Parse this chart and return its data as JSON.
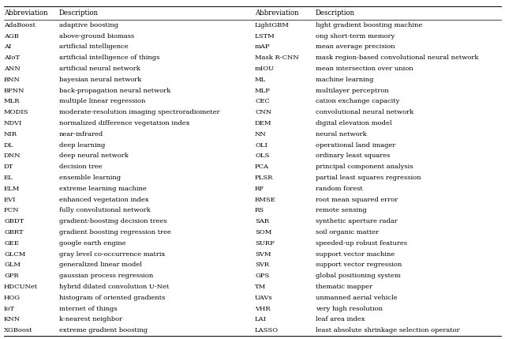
{
  "left_data": [
    [
      "AdaBoost",
      "adaptive boosting"
    ],
    [
      "AGB",
      "above-ground biomass"
    ],
    [
      "AI",
      "artificial intelligence"
    ],
    [
      "AIoT",
      "artificial intelligence of things"
    ],
    [
      "ANN",
      "artificial neural network"
    ],
    [
      "BNN",
      "bayesian neural network"
    ],
    [
      "BPNN",
      "back-propagation neural network"
    ],
    [
      "MLR",
      "multiple linear regression"
    ],
    [
      "MODIS",
      "moderate-resolution imaging spectroradiometer"
    ],
    [
      "NDVI",
      "normalized difference vegetation index"
    ],
    [
      "NIR",
      "near-infrared"
    ],
    [
      "DL",
      "deep learning"
    ],
    [
      "DNN",
      "deep neural network"
    ],
    [
      "DT",
      "decision tree"
    ],
    [
      "EL",
      "ensemble learning"
    ],
    [
      "ELM",
      "extreme learning machine"
    ],
    [
      "EVI",
      "enhanced vegetation index"
    ],
    [
      "FCN",
      "fully convolutional network"
    ],
    [
      "GBDT",
      "gradient-boosting decision trees"
    ],
    [
      "GBRT",
      "gradient boosting regression tree"
    ],
    [
      "GEE",
      "google earth engine"
    ],
    [
      "GLCM",
      "gray level co-occurrence matrix"
    ],
    [
      "GLM",
      "generalized linear model"
    ],
    [
      "GPR",
      "gaussian process regression"
    ],
    [
      "HDCUNet",
      "hybrid dilated convolution U-Net"
    ],
    [
      "HOG",
      "histogram of oriented gradients"
    ],
    [
      "IoT",
      "internet of things"
    ],
    [
      "KNN",
      "k-nearest neighbor"
    ],
    [
      "XGBoost",
      "extreme gradient boosting"
    ]
  ],
  "right_data": [
    [
      "LightGBM",
      "light gradient boosting machine"
    ],
    [
      "LSTM",
      "ong short-term memory"
    ],
    [
      "mAP",
      "mean average precision"
    ],
    [
      "Mask R-CNN",
      "mask region-based convolutional neural network"
    ],
    [
      "mIOU",
      "mean intersection over union"
    ],
    [
      "ML",
      "machine learning"
    ],
    [
      "MLP",
      "multilayer perceptron"
    ],
    [
      "CEC",
      "cation exchange capacity"
    ],
    [
      "CNN",
      "convolutional neural network"
    ],
    [
      "DEM",
      "digital elevation model"
    ],
    [
      "NN",
      "neural network"
    ],
    [
      "OLI",
      "operational land imager"
    ],
    [
      "OLS",
      "ordinary least squares"
    ],
    [
      "PCA",
      "principal component analysis"
    ],
    [
      "PLSR",
      "partial least squares regression"
    ],
    [
      "RF",
      "random forest"
    ],
    [
      "RMSE",
      "root mean squared error"
    ],
    [
      "RS",
      "remote sensing"
    ],
    [
      "SAR",
      "synthetic aperture radar"
    ],
    [
      "SOM",
      "soil organic matter"
    ],
    [
      "SURF",
      "speeded-up robust features"
    ],
    [
      "SVM",
      "support vector machine"
    ],
    [
      "SVR",
      "support vector regression"
    ],
    [
      "GPS",
      "global positioning system"
    ],
    [
      "TM",
      "thematic mapper"
    ],
    [
      "UAVs",
      "unmanned aerial vehicle"
    ],
    [
      "VHR",
      "very high resolution"
    ],
    [
      "LAI",
      "leaf area index"
    ],
    [
      "LASSO",
      "least absolute shrinkage selection operator"
    ]
  ],
  "col_headers": [
    "Abbreviation",
    "Description",
    "Abbreviation",
    "Description"
  ],
  "bg_color": "#ffffff",
  "text_color": "#000000",
  "line_color": "#000000",
  "font_size": 6.0,
  "header_font_size": 6.2
}
